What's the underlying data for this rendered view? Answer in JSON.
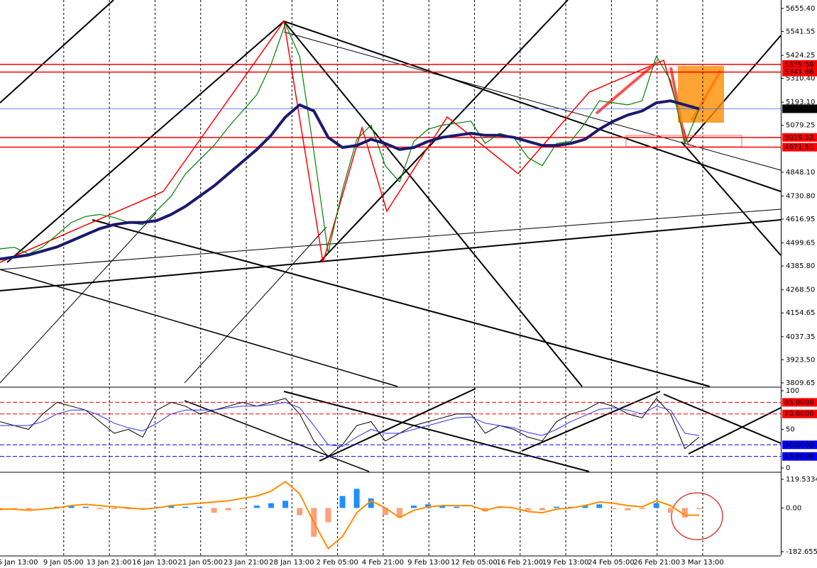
{
  "time_axis": [
    "6 Jan 13:00",
    "9 Jan 05:00",
    "13 Jan 21:00",
    "16 Jan 13:00",
    "21 Jan 05:00",
    "23 Jan 21:00",
    "28 Jan 13:00",
    "2 Feb 05:00",
    "4 Feb 21:00",
    "9 Feb 13:00",
    "12 Feb 05:00",
    "16 Feb 21:00",
    "19 Feb 13:00",
    "24 Feb 05:00",
    "26 Feb 21:00",
    "3 Mar 13:00"
  ],
  "chart_data": [
    {
      "type": "line",
      "ylim": [
        3792,
        5690
      ],
      "yticks": [
        {
          "value": 5655.4,
          "label": "5655.40"
        },
        {
          "value": 5541.55,
          "label": "5541.55"
        },
        {
          "value": 5424.25,
          "label": "5424.25"
        },
        {
          "value": 5310.4,
          "label": "5310.40"
        },
        {
          "value": 5193.1,
          "label": "5193.10"
        },
        {
          "value": 5079.25,
          "label": "5079.25"
        },
        {
          "value": 4848.1,
          "label": "4848.10"
        },
        {
          "value": 4730.8,
          "label": "4730.80"
        },
        {
          "value": 4616.95,
          "label": "4616.95"
        },
        {
          "value": 4499.65,
          "label": "4499.65"
        },
        {
          "value": 4385.8,
          "label": "4385.80"
        },
        {
          "value": 4268.5,
          "label": "4268.50"
        },
        {
          "value": 4154.65,
          "label": "4154.65"
        },
        {
          "value": 4037.35,
          "label": "4037.35"
        },
        {
          "value": 3923.5,
          "label": "3923.50"
        },
        {
          "value": 3809.65,
          "label": "3809.65"
        }
      ],
      "levels": [
        {
          "value": 5379.58,
          "color": "#ff0000"
        },
        {
          "value": 5341.86,
          "color": "#ff0000"
        },
        {
          "value": 5160.94,
          "color": "#000000"
        },
        {
          "value": 5019.52,
          "color": "#ff0000"
        },
        {
          "value": 4971.51,
          "color": "#ff0000"
        }
      ],
      "series": [
        {
          "color": "#008000",
          "width": 1.2,
          "values": [
            4470,
            4478,
            4445,
            4480,
            4540,
            4600,
            4630,
            4640,
            4625,
            4600,
            4590,
            4660,
            4730,
            4840,
            4910,
            4980,
            5070,
            5150,
            5230,
            5380,
            5580,
            5420,
            4950,
            4450,
            4760,
            5010,
            5080,
            4880,
            4800,
            5000,
            5060,
            5080,
            5090,
            5100,
            4990,
            5040,
            5020,
            4920,
            4880,
            4990,
            5000,
            5090,
            5200,
            5190,
            5180,
            5200,
            5420,
            5300,
            4990,
            5160
          ]
        },
        {
          "color": "#1a1a6e",
          "width": 4,
          "values": [
            4420,
            4430,
            4440,
            4460,
            4480,
            4510,
            4540,
            4570,
            4590,
            4600,
            4600,
            4610,
            4640,
            4680,
            4730,
            4780,
            4840,
            4900,
            4960,
            5030,
            5120,
            5180,
            5150,
            5020,
            4970,
            4980,
            5010,
            4990,
            4960,
            4970,
            5000,
            5020,
            5030,
            5040,
            5030,
            5030,
            5020,
            5000,
            4980,
            4980,
            4990,
            5010,
            5060,
            5100,
            5130,
            5150,
            5190,
            5200,
            5180,
            5160
          ]
        }
      ]
    },
    {
      "type": "line",
      "ylim": [
        -4.6,
        102.8
      ],
      "yticks": [
        0,
        50,
        100
      ],
      "levels": [
        {
          "value": 85,
          "label": "85.0000",
          "color": "#ff0000"
        },
        {
          "value": 70,
          "label": "70.0000",
          "color": "#ff0000"
        },
        {
          "value": 30,
          "label": "30.0000",
          "color": "#0000ff"
        },
        {
          "value": 15,
          "label": "15.0000",
          "color": "#0000ff"
        }
      ],
      "series": [
        {
          "color": "#000000",
          "width": 1,
          "values": [
            60,
            55,
            50,
            70,
            85,
            80,
            75,
            60,
            45,
            50,
            40,
            75,
            85,
            80,
            70,
            75,
            80,
            85,
            80,
            85,
            90,
            70,
            35,
            15,
            30,
            55,
            60,
            35,
            45,
            55,
            60,
            65,
            70,
            70,
            45,
            55,
            50,
            40,
            35,
            60,
            70,
            75,
            85,
            80,
            70,
            65,
            90,
            70,
            25,
            40
          ]
        },
        {
          "color": "#3030ff",
          "width": 1,
          "values": [
            55,
            55,
            55,
            60,
            70,
            75,
            75,
            68,
            58,
            52,
            48,
            58,
            70,
            75,
            75,
            75,
            78,
            80,
            80,
            82,
            85,
            78,
            55,
            30,
            28,
            40,
            50,
            45,
            45,
            50,
            55,
            60,
            65,
            66,
            58,
            55,
            52,
            46,
            42,
            50,
            60,
            68,
            76,
            78,
            75,
            70,
            80,
            75,
            45,
            42
          ]
        }
      ]
    },
    {
      "type": "bar",
      "ylim": [
        -197.5,
        137.3
      ],
      "yticks": [
        {
          "value": 119.5334,
          "label": "119.5334"
        },
        {
          "value": 0,
          "label": "0.00"
        },
        {
          "value": -182.655,
          "label": "-182.655"
        }
      ],
      "colors": {
        "up": "#1e8fff",
        "down": "#ffa07a"
      },
      "values": [
        -10,
        -5,
        -10,
        0,
        5,
        10,
        5,
        -5,
        -5,
        -5,
        -5,
        5,
        10,
        5,
        5,
        -20,
        -10,
        -5,
        10,
        20,
        30,
        -30,
        -120,
        -60,
        50,
        80,
        40,
        -30,
        -40,
        10,
        15,
        10,
        5,
        0,
        -15,
        5,
        0,
        -10,
        -10,
        5,
        5,
        10,
        15,
        -5,
        -10,
        -5,
        20,
        -20,
        -40,
        -5
      ],
      "series": [
        {
          "color": "#ff8c00",
          "width": 2,
          "values": [
            -5,
            -5,
            -10,
            -5,
            0,
            10,
            15,
            10,
            5,
            0,
            -5,
            0,
            10,
            15,
            20,
            25,
            30,
            40,
            50,
            70,
            110,
            60,
            -60,
            -170,
            -120,
            -20,
            30,
            0,
            -40,
            -10,
            5,
            10,
            10,
            10,
            -10,
            5,
            0,
            -15,
            -20,
            -5,
            0,
            10,
            25,
            20,
            10,
            5,
            30,
            10,
            -30,
            -30
          ]
        }
      ]
    }
  ]
}
